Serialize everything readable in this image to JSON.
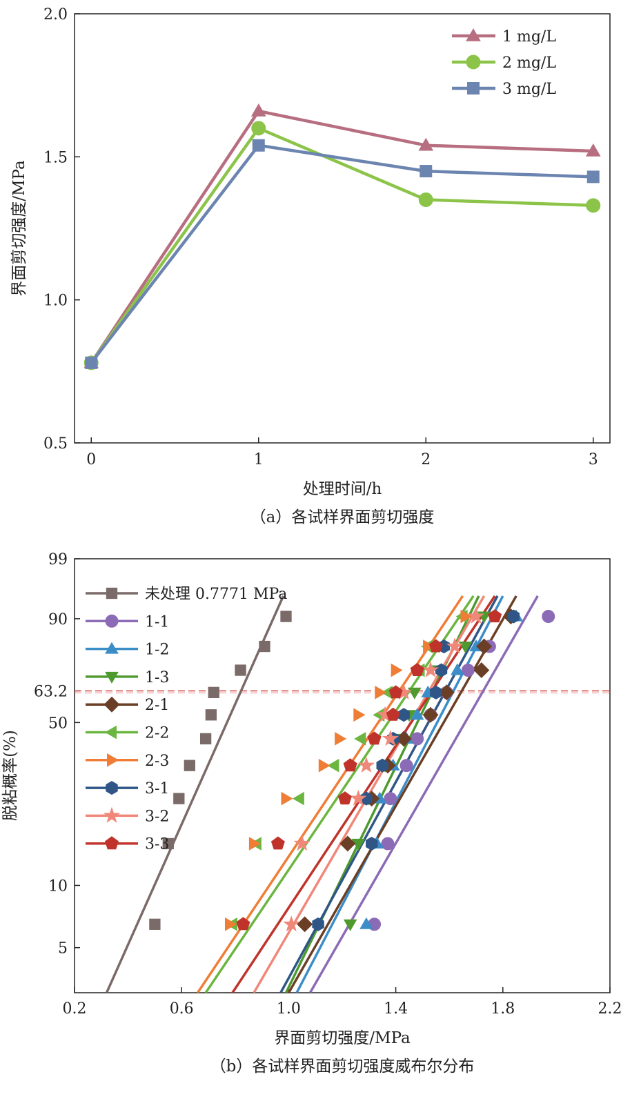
{
  "chart_data": [
    {
      "type": "line",
      "caption": "（a）各试样界面剪切强度",
      "xlabel": "处理时间/h",
      "ylabel": "界面剪切强度/MPa",
      "xlim": [
        -0.1,
        3.1
      ],
      "ylim": [
        0.5,
        2.0
      ],
      "xticks": [
        "0",
        "1",
        "2",
        "3"
      ],
      "yticks": [
        "0.5",
        "1.0",
        "1.5",
        "2.0"
      ],
      "legend_position": "top-right",
      "series": [
        {
          "name": "1 mg/L",
          "marker": "triangle",
          "color": "#b76e80",
          "x": [
            0,
            1,
            2,
            3
          ],
          "y": [
            0.78,
            1.66,
            1.54,
            1.52
          ]
        },
        {
          "name": "2 mg/L",
          "marker": "circle",
          "color": "#8cc449",
          "x": [
            0,
            1,
            2,
            3
          ],
          "y": [
            0.78,
            1.6,
            1.35,
            1.33
          ]
        },
        {
          "name": "3 mg/L",
          "marker": "square",
          "color": "#6c85b0",
          "x": [
            0,
            1,
            2,
            3
          ],
          "y": [
            0.78,
            1.54,
            1.45,
            1.43
          ]
        }
      ]
    },
    {
      "type": "scatter",
      "scale": "weibull",
      "caption": "（b）各试样界面剪切强度威布尔分布",
      "xlabel": "界面剪切强度/MPa",
      "ylabel": "脱粘概率(%)",
      "xlim": [
        0.2,
        2.2
      ],
      "ylim": [
        3,
        99
      ],
      "xticks": [
        "0.2",
        "0.6",
        "1.0",
        "1.4",
        "1.8",
        "2.2"
      ],
      "yticks": [
        "5",
        "10",
        "50",
        "63.2",
        "90",
        "99"
      ],
      "reference_line": {
        "y": 63.2,
        "color": "#d9534f",
        "style": "dashed"
      },
      "legend_position": "top-left",
      "y_levels": [
        6.5,
        15.7,
        25,
        34.4,
        43.7,
        53.1,
        62.5,
        71.9,
        81.2,
        90.6
      ],
      "series": [
        {
          "name": "未处理 0.7771 MPa",
          "marker": "square",
          "color": "#7a6a68",
          "x": [
            0.5,
            0.55,
            0.59,
            0.63,
            0.69,
            0.71,
            0.72,
            0.82,
            0.91,
            0.99
          ],
          "fit": {
            "x": [
              0.32,
              0.98
            ],
            "y": [
              3,
              95
            ]
          }
        },
        {
          "name": "1-1",
          "marker": "circle",
          "color": "#8b6bb5",
          "x": [
            1.32,
            1.37,
            1.38,
            1.44,
            1.48,
            1.53,
            1.59,
            1.67,
            1.75,
            1.97
          ],
          "fit": {
            "x": [
              1.08,
              1.93
            ],
            "y": [
              3,
              95
            ]
          }
        },
        {
          "name": "1-2",
          "marker": "triangle-up",
          "color": "#3b8dc8",
          "x": [
            1.29,
            1.33,
            1.34,
            1.39,
            1.44,
            1.48,
            1.52,
            1.63,
            1.7,
            1.85
          ],
          "fit": {
            "x": [
              1.03,
              1.8
            ],
            "y": [
              3,
              95
            ]
          }
        },
        {
          "name": "1-3",
          "marker": "triangle-down",
          "color": "#4e9a2e",
          "x": [
            1.23,
            1.26,
            1.3,
            1.36,
            1.4,
            1.45,
            1.47,
            1.56,
            1.66,
            1.73
          ],
          "fit": {
            "x": [
              0.99,
              1.71
            ],
            "y": [
              3,
              95
            ]
          }
        },
        {
          "name": "2-1",
          "marker": "diamond",
          "color": "#6b3f25",
          "x": [
            1.06,
            1.22,
            1.31,
            1.37,
            1.43,
            1.53,
            1.59,
            1.72,
            1.73,
            1.83
          ],
          "fit": {
            "x": [
              1.0,
              1.85
            ],
            "y": [
              3,
              95
            ]
          }
        },
        {
          "name": "2-2",
          "marker": "triangle-left",
          "color": "#6bb640",
          "x": [
            0.79,
            0.88,
            1.04,
            1.17,
            1.27,
            1.34,
            1.37,
            1.49,
            1.52,
            1.65
          ],
          "fit": {
            "x": [
              0.69,
              1.69
            ],
            "y": [
              3,
              95
            ]
          }
        },
        {
          "name": "2-3",
          "marker": "triangle-right",
          "color": "#ef7d36",
          "x": [
            0.78,
            0.87,
            0.99,
            1.13,
            1.19,
            1.26,
            1.34,
            1.4,
            1.52,
            1.66
          ],
          "fit": {
            "x": [
              0.66,
              1.65
            ],
            "y": [
              3,
              95
            ]
          }
        },
        {
          "name": "3-1",
          "marker": "hexagon",
          "color": "#2f5686",
          "x": [
            1.11,
            1.31,
            1.29,
            1.35,
            1.39,
            1.43,
            1.55,
            1.57,
            1.58,
            1.84
          ],
          "fit": {
            "x": [
              0.97,
              1.78
            ],
            "y": [
              3,
              95
            ]
          }
        },
        {
          "name": "3-2",
          "marker": "star",
          "color": "#f0887a",
          "x": [
            1.01,
            1.05,
            1.26,
            1.29,
            1.38,
            1.36,
            1.43,
            1.53,
            1.62,
            1.7
          ],
          "fit": {
            "x": [
              0.87,
              1.73
            ],
            "y": [
              3,
              95
            ]
          }
        },
        {
          "name": "3-3",
          "marker": "pentagon",
          "color": "#c0332b",
          "x": [
            0.83,
            0.96,
            1.21,
            1.23,
            1.32,
            1.39,
            1.4,
            1.48,
            1.55,
            1.77
          ],
          "fit": {
            "x": [
              0.79,
              1.77
            ],
            "y": [
              3,
              95
            ]
          }
        }
      ]
    }
  ]
}
